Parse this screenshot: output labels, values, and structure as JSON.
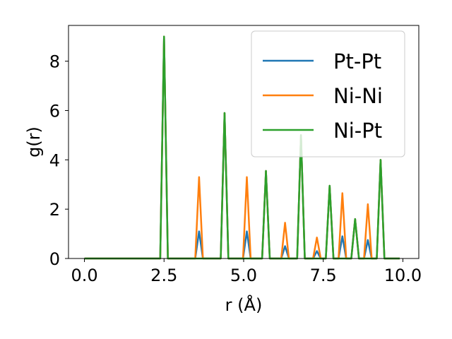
{
  "chart_data": {
    "type": "line",
    "xlabel": "r (Å)",
    "ylabel": "g(r)",
    "xlim": [
      -0.5,
      10.5
    ],
    "ylim": [
      0,
      9.45
    ],
    "xticks": [
      0.0,
      2.5,
      5.0,
      7.5,
      10.0
    ],
    "xtick_labels": [
      "0.0",
      "2.5",
      "5.0",
      "7.5",
      "10.0"
    ],
    "yticks": [
      0,
      2,
      4,
      6,
      8
    ],
    "ytick_labels": [
      "0",
      "2",
      "4",
      "6",
      "8"
    ],
    "grid": false,
    "legend_position": "top-right",
    "peak_half_width": 0.12,
    "series": [
      {
        "name": "Pt-Pt",
        "color": "#1f77b4",
        "peaks": [
          [
            2.5,
            9.0
          ],
          [
            3.6,
            1.1
          ],
          [
            4.4,
            5.9
          ],
          [
            5.1,
            1.1
          ],
          [
            5.7,
            3.55
          ],
          [
            6.3,
            0.5
          ],
          [
            6.8,
            5.0
          ],
          [
            7.3,
            0.3
          ],
          [
            7.7,
            2.95
          ],
          [
            8.1,
            0.9
          ],
          [
            8.5,
            1.6
          ],
          [
            8.9,
            0.75
          ],
          [
            9.3,
            4.0
          ]
        ]
      },
      {
        "name": "Ni-Ni",
        "color": "#ff7f0e",
        "peaks": [
          [
            2.5,
            9.0
          ],
          [
            3.6,
            3.3
          ],
          [
            4.4,
            5.9
          ],
          [
            5.1,
            3.3
          ],
          [
            5.7,
            3.55
          ],
          [
            6.3,
            1.45
          ],
          [
            6.8,
            5.0
          ],
          [
            7.3,
            0.85
          ],
          [
            7.7,
            2.95
          ],
          [
            8.1,
            2.65
          ],
          [
            8.5,
            1.6
          ],
          [
            8.9,
            2.2
          ],
          [
            9.3,
            4.0
          ]
        ]
      },
      {
        "name": "Ni-Pt",
        "color": "#2ca02c",
        "peaks": [
          [
            2.5,
            9.0
          ],
          [
            4.4,
            5.9
          ],
          [
            5.7,
            3.55
          ],
          [
            6.8,
            5.0
          ],
          [
            7.7,
            2.95
          ],
          [
            8.5,
            1.6
          ],
          [
            9.3,
            4.0
          ]
        ]
      }
    ]
  }
}
